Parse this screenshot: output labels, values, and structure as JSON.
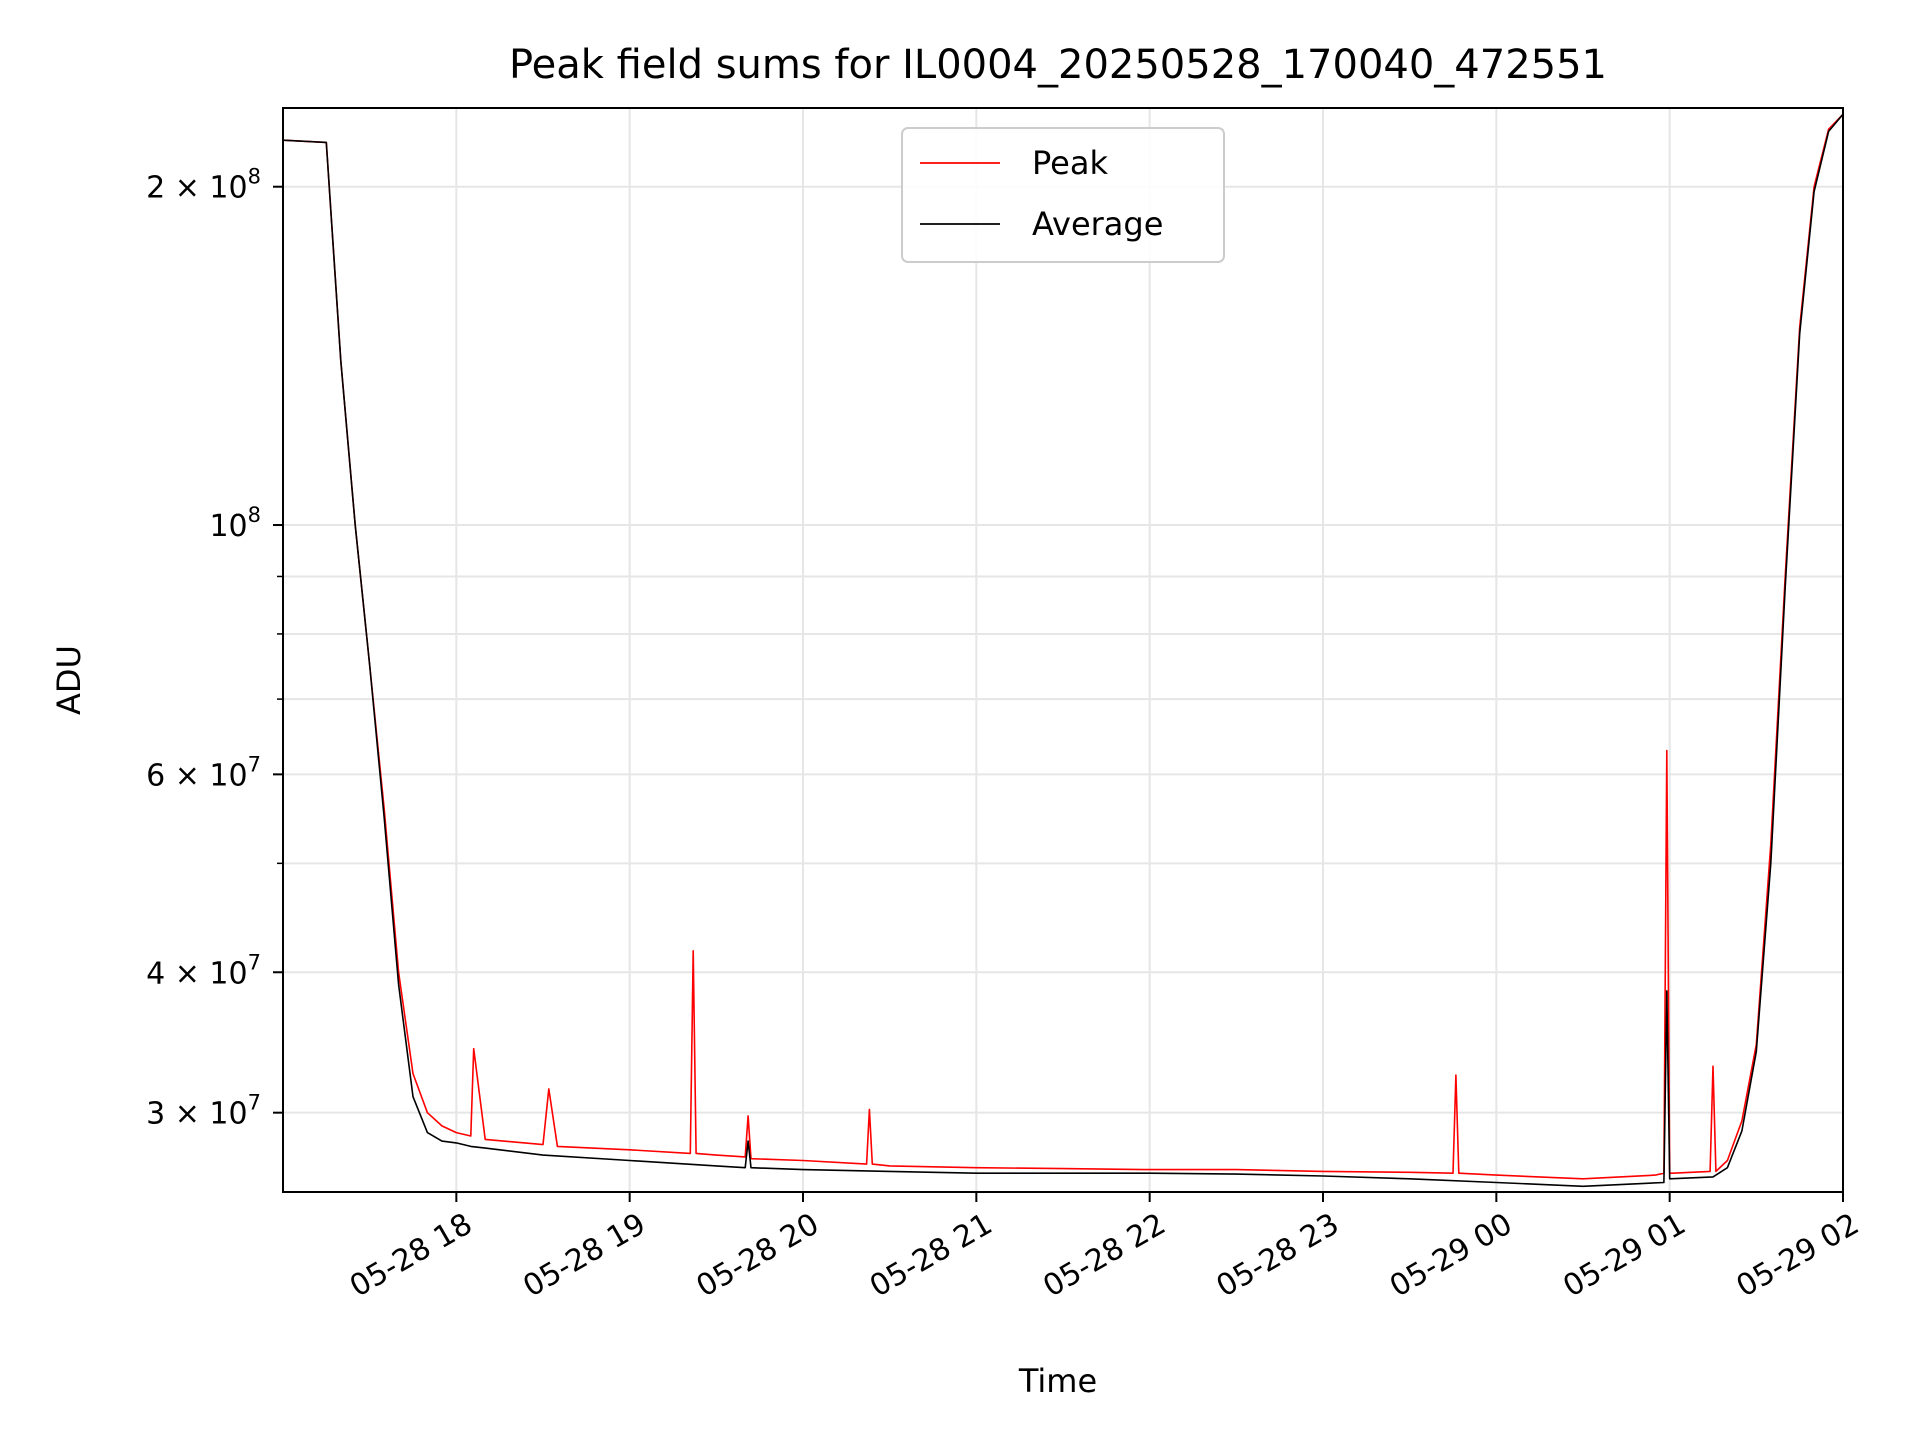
{
  "chart_data": {
    "type": "line",
    "title": "Peak field sums for IL0004_20250528_170040_472551",
    "xlabel": "Time",
    "ylabel": "ADU",
    "yscale": "log",
    "grid": true,
    "legend_position": "top-center",
    "xlim": [
      "2025-05-28 17:00",
      "2025-05-29 02:00"
    ],
    "ylim": [
      25500000,
      235000000
    ],
    "x_ticks": [
      {
        "value": "2025-05-28 18:00",
        "label": "05-28 18"
      },
      {
        "value": "2025-05-28 19:00",
        "label": "05-28 19"
      },
      {
        "value": "2025-05-28 20:00",
        "label": "05-28 20"
      },
      {
        "value": "2025-05-28 21:00",
        "label": "05-28 21"
      },
      {
        "value": "2025-05-28 22:00",
        "label": "05-28 22"
      },
      {
        "value": "2025-05-28 23:00",
        "label": "05-28 23"
      },
      {
        "value": "2025-05-29 00:00",
        "label": "05-29 00"
      },
      {
        "value": "2025-05-29 01:00",
        "label": "05-29 01"
      },
      {
        "value": "2025-05-29 02:00",
        "label": "05-29 02"
      }
    ],
    "y_ticks": [
      {
        "value": 30000000,
        "label_base": "3 × 10",
        "label_exp": "7"
      },
      {
        "value": 40000000,
        "label_base": "4 × 10",
        "label_exp": "7"
      },
      {
        "value": 60000000,
        "label_base": "6 × 10",
        "label_exp": "7"
      },
      {
        "value": 100000000,
        "label_base": "10",
        "label_exp": "8"
      },
      {
        "value": 200000000,
        "label_base": "2 × 10",
        "label_exp": "8"
      }
    ],
    "y_minor_ticks": [
      50000000,
      70000000,
      80000000,
      90000000
    ],
    "series": [
      {
        "name": "Peak",
        "color": "#ff0000",
        "x": [
          "2025-05-28 17:00",
          "2025-05-28 17:15",
          "2025-05-28 17:20",
          "2025-05-28 17:25",
          "2025-05-28 17:30",
          "2025-05-28 17:35",
          "2025-05-28 17:40",
          "2025-05-28 17:45",
          "2025-05-28 17:50",
          "2025-05-28 17:55",
          "2025-05-28 18:00",
          "2025-05-28 18:05",
          "2025-05-28 18:06",
          "2025-05-28 18:10",
          "2025-05-28 18:30",
          "2025-05-28 18:32",
          "2025-05-28 18:35",
          "2025-05-28 19:00",
          "2025-05-28 19:21",
          "2025-05-28 19:22",
          "2025-05-28 19:23",
          "2025-05-28 19:30",
          "2025-05-28 19:40",
          "2025-05-28 19:41",
          "2025-05-28 19:42",
          "2025-05-28 20:00",
          "2025-05-28 20:22",
          "2025-05-28 20:23",
          "2025-05-28 20:24",
          "2025-05-28 20:30",
          "2025-05-28 21:00",
          "2025-05-28 21:30",
          "2025-05-28 22:00",
          "2025-05-28 22:30",
          "2025-05-28 23:00",
          "2025-05-28 23:30",
          "2025-05-28 23:45",
          "2025-05-28 23:46",
          "2025-05-28 23:47",
          "2025-05-29 00:00",
          "2025-05-29 00:30",
          "2025-05-29 00:55",
          "2025-05-29 00:58",
          "2025-05-29 00:59",
          "2025-05-29 01:00",
          "2025-05-29 01:01",
          "2025-05-29 01:14",
          "2025-05-29 01:15",
          "2025-05-29 01:16",
          "2025-05-29 01:20",
          "2025-05-29 01:25",
          "2025-05-29 01:30",
          "2025-05-29 01:35",
          "2025-05-29 01:40",
          "2025-05-29 01:45",
          "2025-05-29 01:50",
          "2025-05-29 01:55",
          "2025-05-29 02:00"
        ],
        "values": [
          220000000,
          219000000,
          140000000,
          100000000,
          75000000,
          56000000,
          40000000,
          32500000,
          30000000,
          29200000,
          28800000,
          28600000,
          34200000,
          28400000,
          28100000,
          31500000,
          28000000,
          27800000,
          27600000,
          41800000,
          27600000,
          27500000,
          27400000,
          29800000,
          27300000,
          27200000,
          27000000,
          30200000,
          27000000,
          26900000,
          26800000,
          26750000,
          26700000,
          26700000,
          26600000,
          26550000,
          26500000,
          32400000,
          26500000,
          26400000,
          26200000,
          26400000,
          26500000,
          63000000,
          26500000,
          26500000,
          26600000,
          33000000,
          26600000,
          27200000,
          29500000,
          34500000,
          52000000,
          90000000,
          150000000,
          200000000,
          225000000,
          232000000
        ]
      },
      {
        "name": "Average",
        "color": "#000000",
        "x": [
          "2025-05-28 17:00",
          "2025-05-28 17:15",
          "2025-05-28 17:20",
          "2025-05-28 17:25",
          "2025-05-28 17:30",
          "2025-05-28 17:35",
          "2025-05-28 17:40",
          "2025-05-28 17:45",
          "2025-05-28 17:50",
          "2025-05-28 17:55",
          "2025-05-28 18:00",
          "2025-05-28 18:05",
          "2025-05-28 18:10",
          "2025-05-28 18:30",
          "2025-05-28 19:00",
          "2025-05-28 19:30",
          "2025-05-28 19:40",
          "2025-05-28 19:41",
          "2025-05-28 19:42",
          "2025-05-28 20:00",
          "2025-05-28 20:30",
          "2025-05-28 21:00",
          "2025-05-28 21:30",
          "2025-05-28 22:00",
          "2025-05-28 22:30",
          "2025-05-28 23:00",
          "2025-05-28 23:30",
          "2025-05-29 00:00",
          "2025-05-29 00:30",
          "2025-05-29 00:58",
          "2025-05-29 00:59",
          "2025-05-29 01:00",
          "2025-05-29 01:15",
          "2025-05-29 01:20",
          "2025-05-29 01:25",
          "2025-05-29 01:30",
          "2025-05-29 01:35",
          "2025-05-29 01:40",
          "2025-05-29 01:45",
          "2025-05-29 01:50",
          "2025-05-29 01:55",
          "2025-05-29 02:00"
        ],
        "values": [
          220000000,
          219000000,
          140000000,
          100000000,
          75000000,
          55000000,
          39000000,
          31000000,
          28800000,
          28300000,
          28200000,
          28000000,
          27900000,
          27500000,
          27200000,
          26900000,
          26800000,
          28300000,
          26800000,
          26700000,
          26600000,
          26500000,
          26500000,
          26500000,
          26450000,
          26350000,
          26200000,
          26000000,
          25800000,
          26000000,
          38500000,
          26200000,
          26300000,
          26800000,
          28900000,
          34000000,
          50000000,
          88000000,
          148000000,
          198000000,
          224000000,
          232000000
        ]
      }
    ]
  }
}
